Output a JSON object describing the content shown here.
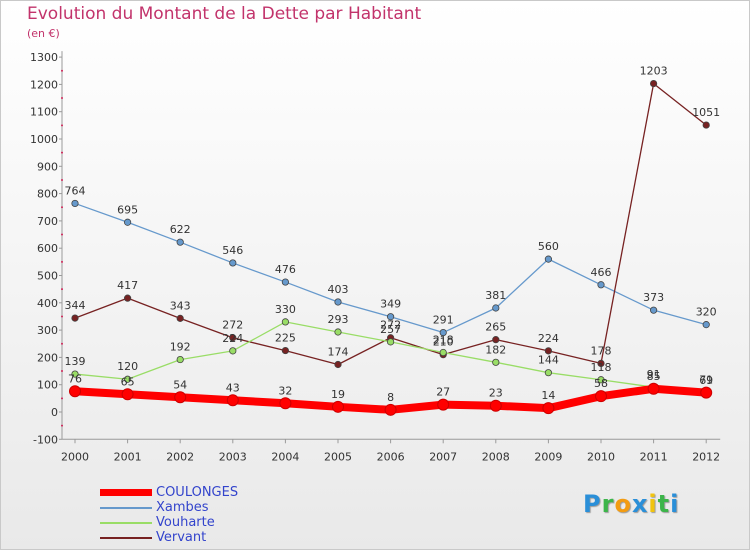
{
  "chart_data": {
    "type": "line",
    "title": "Evolution du Montant de la Dette par Habitant",
    "subtitle": "(en €)",
    "x": [
      "2000",
      "2001",
      "2002",
      "2003",
      "2004",
      "2005",
      "2006",
      "2007",
      "2008",
      "2009",
      "2010",
      "2011",
      "2012"
    ],
    "ylim": [
      -100,
      1300
    ],
    "yticks": [
      "-100",
      "0",
      "100",
      "200",
      "300",
      "400",
      "500",
      "600",
      "700",
      "800",
      "900",
      "1000",
      "1100",
      "1200",
      "1300"
    ],
    "grid": "none",
    "legend_position": "bottom-left",
    "series": [
      {
        "name": "COULONGES",
        "color": "#ff0000",
        "values": [
          76,
          65,
          54,
          43,
          32,
          19,
          8,
          27,
          23,
          14,
          58,
          85,
          71
        ],
        "labels": [
          "76",
          "65",
          "54",
          "43",
          "32",
          "19",
          "8",
          "27",
          "23",
          "14",
          "58",
          "85",
          "71"
        ]
      },
      {
        "name": "Xambes",
        "color": "#6699cc",
        "values": [
          764,
          695,
          622,
          546,
          476,
          403,
          349,
          291,
          381,
          560,
          466,
          373,
          320
        ],
        "labels": [
          "764",
          "695",
          "622",
          "546",
          "476",
          "403",
          "349",
          "291",
          "381",
          "560",
          "466",
          "373",
          "320"
        ]
      },
      {
        "name": "Vouharte",
        "color": "#99dd66",
        "values": [
          139,
          120,
          192,
          224,
          330,
          293,
          257,
          218,
          182,
          144,
          118,
          91,
          69
        ],
        "labels": [
          "139",
          "120",
          "192",
          "224",
          "330",
          "293",
          "257",
          "218",
          "182",
          "144",
          "118",
          "91",
          "69"
        ]
      },
      {
        "name": "Vervant",
        "color": "#772222",
        "values": [
          344,
          417,
          343,
          272,
          225,
          174,
          272,
          210,
          265,
          224,
          178,
          1203,
          1051
        ],
        "labels": [
          "344",
          "417",
          "343",
          "272",
          "225",
          "174",
          "272",
          "210",
          "265",
          "224",
          "178",
          "1203",
          "1051"
        ]
      }
    ]
  },
  "brand": {
    "letters": [
      "P",
      "r",
      "o",
      "x",
      "i",
      "t",
      "i"
    ],
    "colors": [
      "#2a8fd8",
      "#3cb54a",
      "#f39c12",
      "#2a8fd8",
      "#f1c40f",
      "#3cb54a",
      "#2a8fd8"
    ]
  }
}
